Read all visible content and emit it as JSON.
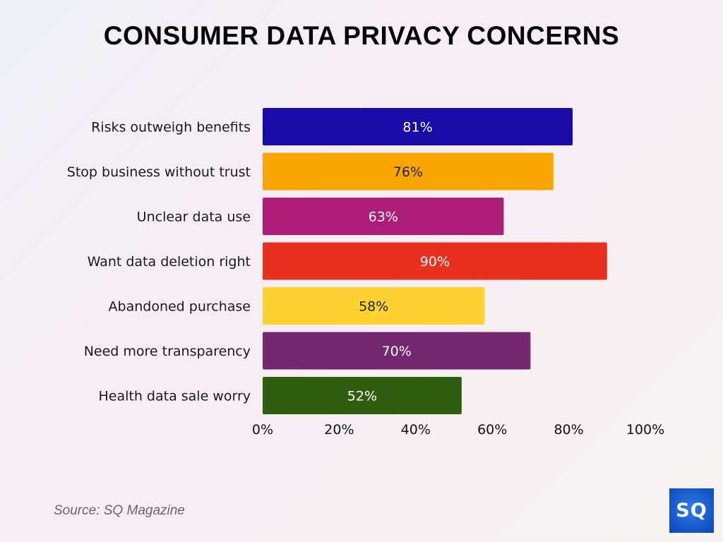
{
  "chart_data": {
    "type": "bar",
    "orientation": "horizontal",
    "title": "CONSUMER DATA PRIVACY CONCERNS",
    "categories": [
      "Risks outweigh benefits",
      "Stop business without trust",
      "Unclear data use",
      "Want data deletion right",
      "Abandoned purchase",
      "Need more transparency",
      "Health data sale worry"
    ],
    "values": [
      81,
      76,
      63,
      90,
      58,
      70,
      52
    ],
    "value_labels": [
      "81%",
      "76%",
      "63%",
      "90%",
      "58%",
      "70%",
      "52%"
    ],
    "colors": [
      "#1a0aa8",
      "#f9a602",
      "#ac1e78",
      "#e8301f",
      "#fdd231",
      "#742870",
      "#2f5e10"
    ],
    "label_colors": [
      "#ffffff",
      "#222222",
      "#ffffff",
      "#ffffff",
      "#222222",
      "#ffffff",
      "#ffffff"
    ],
    "xlim": [
      0,
      100
    ],
    "xticks": [
      0,
      20,
      40,
      60,
      80,
      100
    ],
    "xtick_labels": [
      "0%",
      "20%",
      "40%",
      "60%",
      "80%",
      "100%"
    ],
    "xlabel": "",
    "ylabel": "",
    "grid": false,
    "legend": "none"
  },
  "footer": {
    "source": "Source: SQ Magazine",
    "logo_text": "SQ"
  }
}
